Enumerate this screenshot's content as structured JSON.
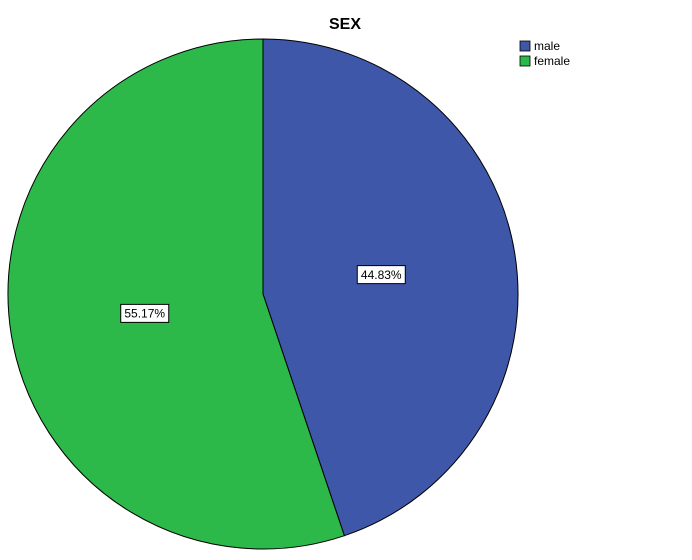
{
  "chart_data": {
    "type": "pie",
    "title": "SEX",
    "categories": [
      "male",
      "female"
    ],
    "values": [
      44.83,
      55.17
    ],
    "value_labels": [
      "44.83%",
      "55.17%"
    ],
    "colors": [
      "#3f57a8",
      "#2db84a"
    ],
    "legend": "top-right"
  }
}
